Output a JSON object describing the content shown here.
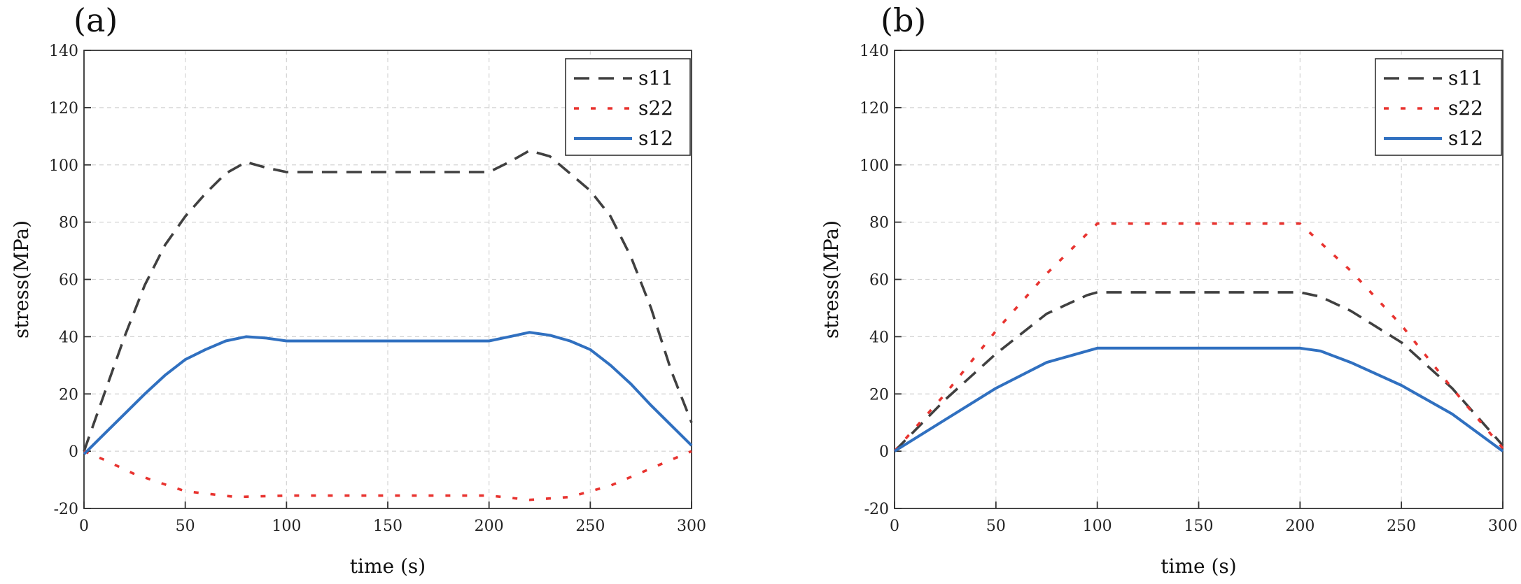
{
  "chart_data": [
    {
      "type": "line",
      "panel_label": "(a)",
      "xlabel": "time (s)",
      "ylabel": "stress(MPa)",
      "xlim": [
        0,
        300
      ],
      "ylim": [
        -20,
        140
      ],
      "xticks": [
        0,
        50,
        100,
        150,
        200,
        250,
        300
      ],
      "yticks": [
        -20,
        0,
        20,
        40,
        60,
        80,
        100,
        120,
        140
      ],
      "grid": true,
      "legend_position": "top-right",
      "series": [
        {
          "name": "s11",
          "color": "#404040",
          "style": "dashed",
          "x": [
            0,
            10,
            20,
            30,
            40,
            50,
            60,
            70,
            80,
            90,
            100,
            110,
            150,
            190,
            200,
            210,
            220,
            230,
            240,
            250,
            260,
            270,
            280,
            290,
            300
          ],
          "y": [
            0,
            20,
            40,
            58,
            72,
            82,
            90,
            97,
            101,
            99,
            97.5,
            97.5,
            97.5,
            97.5,
            97.5,
            101,
            105,
            103,
            97,
            91,
            82,
            68,
            50,
            28,
            10
          ]
        },
        {
          "name": "s22",
          "color": "#e8332f",
          "style": "dotted",
          "x": [
            0,
            10,
            25,
            50,
            75,
            100,
            150,
            200,
            220,
            240,
            260,
            280,
            300
          ],
          "y": [
            0,
            -3,
            -8,
            -14,
            -16,
            -15.5,
            -15.5,
            -15.5,
            -17,
            -16,
            -12,
            -6,
            0
          ]
        },
        {
          "name": "s12",
          "color": "#3070c0",
          "style": "solid",
          "x": [
            0,
            10,
            20,
            30,
            40,
            50,
            60,
            70,
            80,
            90,
            100,
            110,
            150,
            200,
            210,
            220,
            230,
            240,
            250,
            260,
            270,
            280,
            290,
            300
          ],
          "y": [
            -1,
            6,
            13,
            20,
            26.5,
            32,
            35.5,
            38.5,
            40,
            39.5,
            38.5,
            38.5,
            38.5,
            38.5,
            40,
            41.5,
            40.5,
            38.5,
            35.5,
            30,
            23.5,
            16,
            9,
            2
          ]
        }
      ]
    },
    {
      "type": "line",
      "panel_label": "(b)",
      "xlabel": "time (s)",
      "ylabel": "stress(MPa)",
      "xlim": [
        0,
        300
      ],
      "ylim": [
        -20,
        140
      ],
      "xticks": [
        0,
        50,
        100,
        150,
        200,
        250,
        300
      ],
      "yticks": [
        -20,
        0,
        20,
        40,
        60,
        80,
        100,
        120,
        140
      ],
      "grid": true,
      "legend_position": "top-right",
      "series": [
        {
          "name": "s11",
          "color": "#404040",
          "style": "dashed",
          "x": [
            0,
            25,
            50,
            75,
            95,
            100,
            150,
            200,
            210,
            225,
            250,
            275,
            300
          ],
          "y": [
            0,
            18,
            34,
            48,
            54.5,
            55.5,
            55.5,
            55.5,
            54,
            49,
            38,
            22,
            2
          ]
        },
        {
          "name": "s22",
          "color": "#e8332f",
          "style": "dotted",
          "x": [
            0,
            25,
            50,
            75,
            100,
            150,
            200,
            225,
            250,
            275,
            300
          ],
          "y": [
            0,
            20,
            42,
            62,
            79.5,
            79.5,
            79.5,
            63,
            44,
            22,
            1
          ]
        },
        {
          "name": "s12",
          "color": "#3070c0",
          "style": "solid",
          "x": [
            0,
            25,
            50,
            75,
            100,
            150,
            200,
            210,
            225,
            250,
            275,
            300
          ],
          "y": [
            0,
            11,
            22,
            31,
            36,
            36,
            36,
            35,
            31,
            23,
            13,
            0
          ]
        }
      ]
    }
  ]
}
